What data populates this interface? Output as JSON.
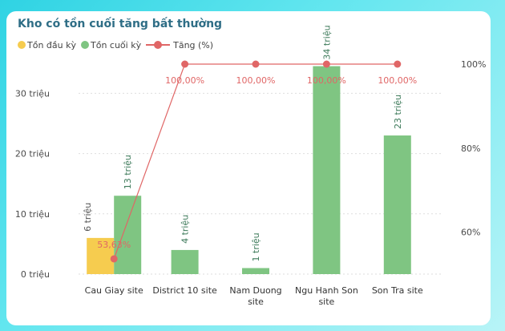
{
  "title": "Kho có tồn cuối tăng bất thường",
  "colors": {
    "opening": "#f6cc4f",
    "closing": "#7fc582",
    "increase": "#e06666",
    "axis_text": "#4a4a4a",
    "grid": "#dedede"
  },
  "chart_data": {
    "type": "bar",
    "title": "Kho có tồn cuối tăng bất thường",
    "legend_position": "top-left",
    "categories": [
      [
        "Cau Giay site"
      ],
      [
        "District 10 site"
      ],
      [
        "Nam Duong",
        "site"
      ],
      [
        "Ngu Hanh Son",
        "site"
      ],
      [
        "Son Tra site"
      ]
    ],
    "series": [
      {
        "name": "Tồn đầu kỳ",
        "kind": "bar",
        "values": [
          6,
          0,
          0,
          0,
          0
        ],
        "labels": [
          "6 triệu",
          "",
          "",
          "",
          ""
        ]
      },
      {
        "name": "Tồn cuối kỳ",
        "kind": "bar",
        "values": [
          13,
          4,
          1,
          34.5,
          23
        ],
        "labels": [
          "13 triệu",
          "4 triệu",
          "1 triệu",
          "34 triệu",
          "23 triệu"
        ]
      },
      {
        "name": "Tăng (%)",
        "kind": "line",
        "axis": "right",
        "values": [
          53.63,
          100,
          100,
          100,
          100
        ],
        "labels": [
          "53,63%",
          "100,00%",
          "100,00%",
          "100,00%",
          "100,00%"
        ]
      }
    ],
    "y_left": {
      "ylim": [
        0,
        37.5
      ],
      "ticks": [
        0,
        10,
        20,
        30
      ],
      "tick_labels": [
        "0 triệu",
        "10 triệu",
        "20 triệu",
        "30 triệu"
      ]
    },
    "y_right": {
      "ylim": [
        50,
        100
      ],
      "ticks": [
        60,
        80,
        100
      ],
      "tick_labels": [
        "60%",
        "80%",
        "100%"
      ]
    },
    "grid": true
  }
}
